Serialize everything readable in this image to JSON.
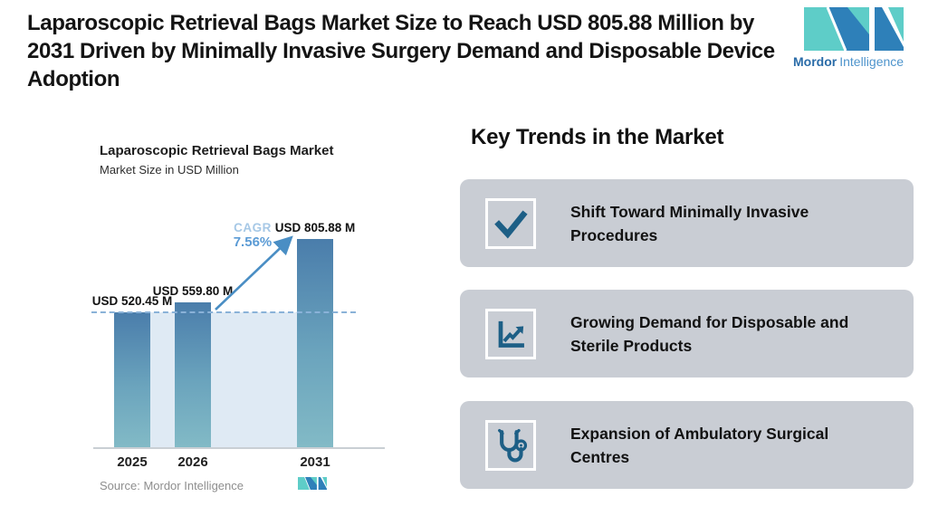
{
  "header": {
    "title": "Laparoscopic Retrieval Bags Market Size to Reach USD 805.88 Million by 2031 Driven by Minimally Invasive Surgery Demand and Disposable Device Adoption"
  },
  "brand": {
    "name_bold": "Mordor",
    "name_light": "Intelligence",
    "mark_teal": "#5ecdc8",
    "mark_blue": "#2e80b9",
    "text_bold_color": "#2a6ca8",
    "text_light_color": "#4e94cc"
  },
  "chart": {
    "title": "Laparoscopic Retrieval Bags Market",
    "subtitle": "Market Size in USD Million",
    "cagr_label": "CAGR",
    "cagr_value": "7.56%",
    "source_label": "Source:",
    "source_value": "Mordor Intelligence"
  },
  "chart_data": {
    "type": "bar",
    "title": "Laparoscopic Retrieval Bags Market",
    "subtitle": "Market Size in USD Million",
    "ylabel": "Market Size in USD Million",
    "categories": [
      "2025",
      "2026",
      "2031"
    ],
    "values": [
      520.45,
      559.8,
      805.88
    ],
    "value_labels": [
      "USD 520.45 M",
      "USD 559.80 M",
      "USD 805.88 M"
    ],
    "annotations": [
      "CAGR",
      "7.56%"
    ],
    "cagr_arrow": "from 2026 bar top to 2031 bar top",
    "reference_line": "horizontal dashed line at 2025 value (520.45)",
    "grid": "off",
    "legend": "none",
    "bar_gradient_top": "#4a7dab",
    "bar_gradient_bottom": "#82bac6",
    "band_color": "#dfeaf4",
    "dashed_line_color": "#8ab2d8",
    "arrow_color": "#4a8ec4"
  },
  "key_trends": {
    "heading": "Key Trends in the Market",
    "card_bg": "#c9cdd4",
    "icon_color": "#1d5f86",
    "cards": [
      {
        "icon": "check-icon",
        "text": "Shift Toward Minimally Invasive Procedures"
      },
      {
        "icon": "line-chart-icon",
        "text": "Growing Demand for Disposable and Sterile Products"
      },
      {
        "icon": "stethoscope-icon",
        "text": "Expansion of Ambulatory Surgical Centres"
      }
    ]
  }
}
